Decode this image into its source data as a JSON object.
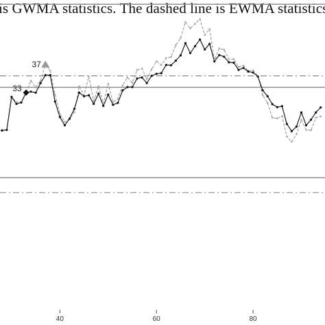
{
  "caption": "is GWMA statistics. The dashed line is EWMA statistics.",
  "chart_data": {
    "type": "line",
    "title": "",
    "xlabel": "",
    "ylabel": "",
    "xlim": [
      27.6,
      94.9
    ],
    "ylim": [
      -4.3,
      5.1
    ],
    "x_ticks": [
      40,
      60,
      80
    ],
    "grid": false,
    "legend": "none",
    "series": [
      {
        "name": "GWMA",
        "style": "solid",
        "color": "#1a1a1a",
        "x": [
          28,
          29,
          30,
          31,
          32,
          33,
          34,
          35,
          36,
          37,
          38,
          39,
          40,
          41,
          42,
          43,
          44,
          45,
          46,
          47,
          48,
          49,
          50,
          51,
          52,
          53,
          54,
          55,
          56,
          57,
          58,
          59,
          60,
          61,
          62,
          63,
          64,
          65,
          66,
          67,
          68,
          69,
          70,
          71,
          72,
          73,
          74,
          75,
          76,
          77,
          78,
          79,
          80,
          81,
          82,
          83,
          84,
          85,
          86,
          87,
          88,
          89,
          90,
          91,
          92,
          93,
          94
        ],
        "y": [
          1.14,
          1.16,
          2.16,
          1.95,
          1.99,
          2.29,
          2.32,
          2.29,
          2.58,
          2.82,
          2.82,
          2.02,
          1.55,
          1.3,
          1.5,
          1.8,
          2.29,
          2.18,
          2.21,
          1.95,
          2.26,
          1.89,
          2.23,
          1.92,
          1.98,
          2.36,
          2.46,
          2.46,
          2.72,
          2.75,
          2.58,
          2.8,
          2.86,
          2.88,
          3.13,
          3.12,
          3.26,
          3.42,
          3.79,
          3.49,
          3.7,
          3.9,
          3.6,
          3.77,
          3.24,
          3.43,
          3.38,
          3.21,
          3.2,
          2.98,
          3.04,
          2.93,
          2.9,
          2.78,
          2.36,
          2.18,
          1.94,
          1.85,
          1.88,
          1.34,
          1.12,
          1.26,
          1.69,
          1.3,
          1.47,
          1.69,
          1.84
        ]
      },
      {
        "name": "EWMA",
        "style": "dashed",
        "color": "#9a9a9a",
        "x": [
          28,
          29,
          30,
          31,
          32,
          33,
          34,
          35,
          36,
          37,
          38,
          39,
          40,
          41,
          42,
          43,
          44,
          45,
          46,
          47,
          48,
          49,
          50,
          51,
          52,
          53,
          54,
          55,
          56,
          57,
          58,
          59,
          60,
          61,
          62,
          63,
          64,
          65,
          66,
          67,
          68,
          69,
          70,
          71,
          72,
          73,
          74,
          75,
          76,
          77,
          78,
          79,
          80,
          81,
          82,
          83,
          84,
          85,
          86,
          87,
          88,
          89,
          90,
          91,
          92,
          93,
          94
        ],
        "y": [
          1.16,
          1.16,
          2.17,
          2.0,
          2.01,
          2.3,
          2.65,
          2.45,
          2.65,
          3.15,
          2.96,
          2.23,
          1.64,
          1.4,
          1.49,
          1.7,
          2.48,
          2.21,
          2.78,
          2.04,
          2.48,
          1.96,
          2.56,
          2.0,
          2.1,
          2.51,
          2.75,
          2.59,
          2.98,
          3.02,
          2.7,
          3.0,
          3.24,
          3.13,
          3.34,
          3.37,
          3.73,
          3.95,
          4.43,
          4.24,
          4.38,
          4.52,
          4.04,
          4.22,
          3.28,
          3.63,
          3.59,
          3.3,
          3.31,
          3.07,
          3.11,
          2.95,
          2.97,
          2.79,
          2.21,
          1.98,
          1.53,
          1.51,
          1.58,
          0.96,
          0.8,
          1.03,
          1.47,
          1.16,
          1.15,
          1.53,
          1.57
        ]
      }
    ],
    "reference_lines": [
      {
        "name": "upper-outer-limit",
        "style": "solid",
        "y": 4.97
      },
      {
        "name": "upper-dashdot-limit",
        "style": "dash-dot",
        "y": 2.8
      },
      {
        "name": "upper-solid-limit",
        "style": "solid",
        "y": 2.45
      },
      {
        "name": "lower-solid-limit",
        "style": "solid",
        "y": -0.29
      },
      {
        "name": "lower-dashdot-limit",
        "style": "dash-dot",
        "y": -0.74
      }
    ],
    "annotations": [
      {
        "text": "37",
        "x": 37,
        "y": 3.14,
        "marker": "triangle",
        "color": "#999999",
        "label_x": 34.2,
        "label_y": 3.15
      },
      {
        "text": "33",
        "x": 33,
        "y": 2.29,
        "marker": "diamond",
        "color": "#111111",
        "label_x": 30.2,
        "label_y": 2.42
      }
    ]
  }
}
